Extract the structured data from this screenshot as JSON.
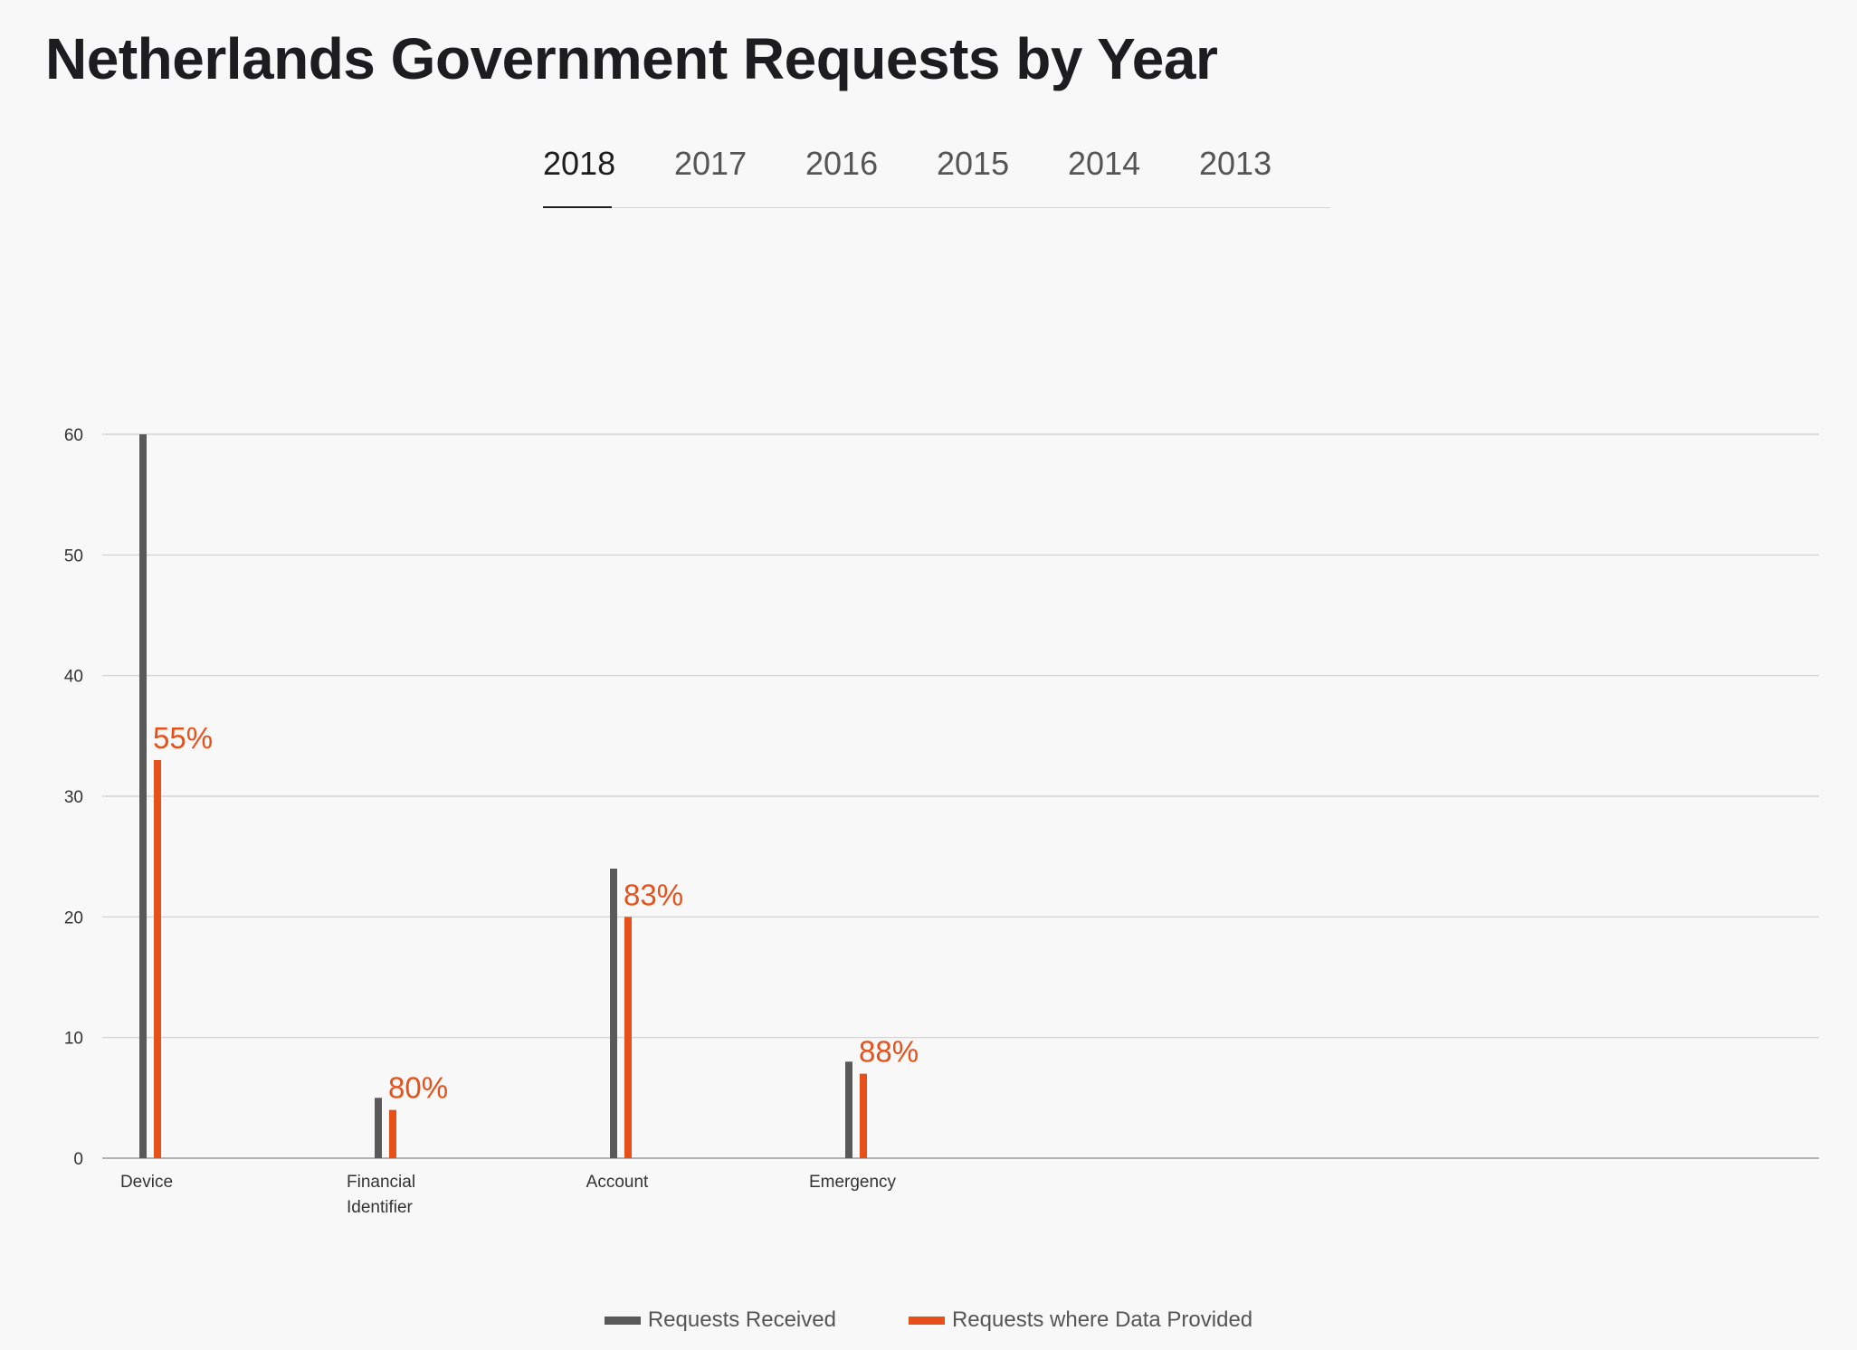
{
  "page": {
    "title": "Netherlands Government Requests by Year"
  },
  "tabs": [
    {
      "label": "2018",
      "active": true
    },
    {
      "label": "2017",
      "active": false
    },
    {
      "label": "2016",
      "active": false
    },
    {
      "label": "2015",
      "active": false
    },
    {
      "label": "2014",
      "active": false
    },
    {
      "label": "2013",
      "active": false
    }
  ],
  "colors": {
    "received": "#595959",
    "provided": "#e8501a",
    "grid": "#cfcfcf",
    "axis_text": "#333333"
  },
  "chart_data": {
    "type": "bar",
    "title": "",
    "xlabel": "",
    "ylabel": "",
    "ylim": [
      0,
      60
    ],
    "yticks": [
      0,
      10,
      20,
      30,
      40,
      50,
      60
    ],
    "grid": true,
    "legend_placement": "bottom-center",
    "categories": [
      [
        "Device"
      ],
      [
        "Financial",
        "Identifier"
      ],
      [
        "Account"
      ],
      [
        "Emergency"
      ]
    ],
    "series": [
      {
        "name": "Requests Received",
        "values": [
          60,
          5,
          24,
          8
        ]
      },
      {
        "name": "Requests where Data Provided",
        "values": [
          33,
          4,
          20,
          7
        ]
      }
    ],
    "annotations": [
      "55%",
      "80%",
      "83%",
      "88%"
    ]
  }
}
